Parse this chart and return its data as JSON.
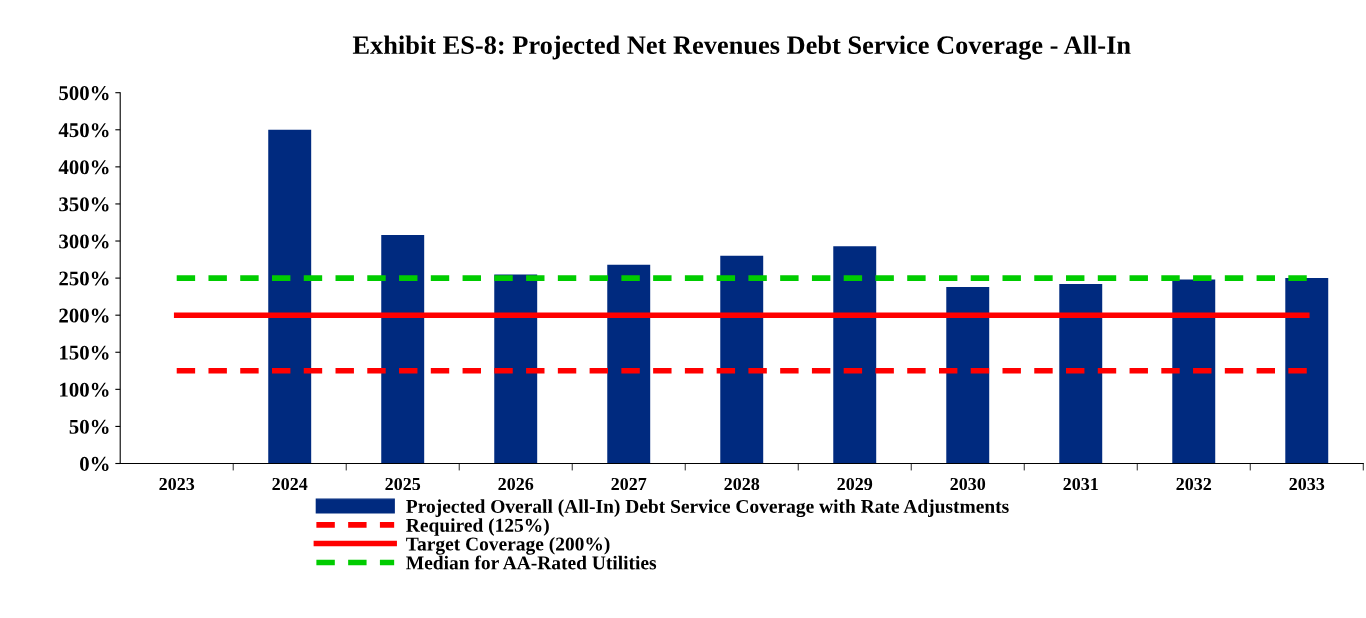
{
  "chart_data": {
    "type": "bar",
    "title": "Exhibit ES-8: Projected Net Revenues Debt Service Coverage - All-In",
    "categories": [
      "2023",
      "2024",
      "2025",
      "2026",
      "2027",
      "2028",
      "2029",
      "2030",
      "2031",
      "2032",
      "2033"
    ],
    "series": [
      {
        "name": "Projected Overall (All-In) Debt Service Coverage with Rate Adjustments",
        "color": "#002a7f",
        "values": [
          null,
          450,
          308,
          255,
          268,
          280,
          293,
          238,
          242,
          248,
          250
        ]
      },
      {
        "name": "Required (125%)",
        "type": "line",
        "line_style": "dashed",
        "color": "#ff0000",
        "values": [
          125,
          125,
          125,
          125,
          125,
          125,
          125,
          125,
          125,
          125,
          125
        ]
      },
      {
        "name": "Target Coverage (200%)",
        "type": "line",
        "line_style": "solid",
        "color": "#ff0000",
        "values": [
          200,
          200,
          200,
          200,
          200,
          200,
          200,
          200,
          200,
          200,
          200
        ]
      },
      {
        "name": "Median for AA-Rated Utilities",
        "type": "line",
        "line_style": "dashed",
        "color": "#00cc00",
        "values": [
          250,
          250,
          250,
          250,
          250,
          250,
          250,
          250,
          250,
          250,
          250
        ]
      }
    ],
    "ylim": [
      0,
      500
    ],
    "yticks": [
      {
        "value": 0,
        "label": "0%"
      },
      {
        "value": 50,
        "label": "50%"
      },
      {
        "value": 100,
        "label": "100%"
      },
      {
        "value": 150,
        "label": "150%"
      },
      {
        "value": 200,
        "label": "200%"
      },
      {
        "value": 250,
        "label": "250%"
      },
      {
        "value": 300,
        "label": "300%"
      },
      {
        "value": 350,
        "label": "350%"
      },
      {
        "value": 400,
        "label": "400%"
      },
      {
        "value": 450,
        "label": "450%"
      },
      {
        "value": 500,
        "label": "500%"
      }
    ],
    "grid": false,
    "legend": "bottom"
  }
}
